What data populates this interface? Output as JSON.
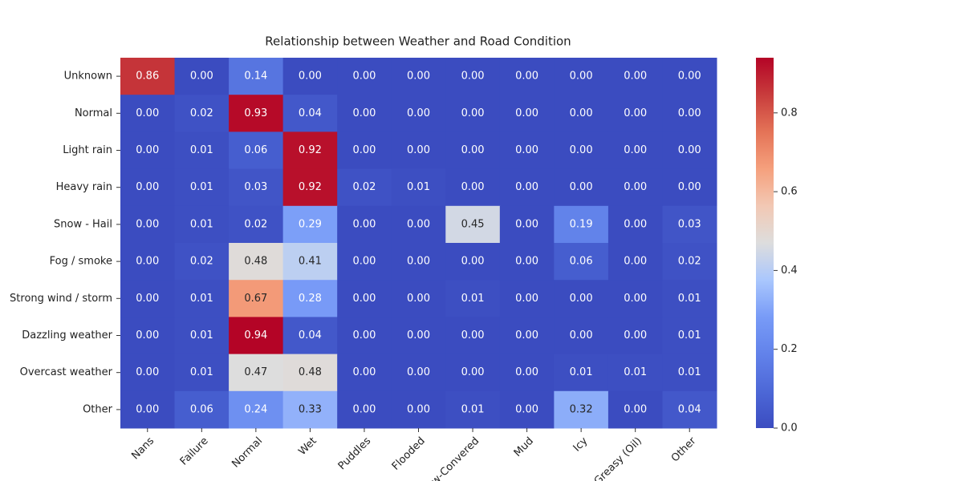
{
  "chart_data": {
    "type": "heatmap",
    "title": "Relationship between Weather and Road Condition",
    "colormap": "coolwarm",
    "categories": [
      "Nans",
      "Failure",
      "Normal",
      "Wet",
      "Puddles",
      "Flooded",
      "Snow-Convered",
      "Mud",
      "Icy",
      "Greasy (Oil)",
      "Other"
    ],
    "rows": [
      "Unknown",
      "Normal",
      "Light rain",
      "Heavy rain",
      "Snow - Hail",
      "Fog / smoke",
      "Strong wind / storm",
      "Dazzling weather",
      "Overcast weather",
      "Other"
    ],
    "values": [
      [
        0.86,
        0,
        0.14,
        0,
        0,
        0,
        0,
        0,
        0,
        0,
        0
      ],
      [
        0,
        0.02,
        0.93,
        0.04,
        0,
        0,
        0,
        0,
        0,
        0,
        0
      ],
      [
        0,
        0.01,
        0.06,
        0.92,
        0,
        0,
        0,
        0,
        0,
        0,
        0
      ],
      [
        0,
        0.01,
        0.03,
        0.92,
        0.02,
        0.01,
        0,
        0,
        0,
        0,
        0
      ],
      [
        0,
        0.01,
        0.02,
        0.29,
        0,
        0,
        0.45,
        0,
        0.19,
        0,
        0.03
      ],
      [
        0,
        0.02,
        0.48,
        0.41,
        0,
        0,
        0,
        0,
        0.06,
        0,
        0.02
      ],
      [
        0,
        0.01,
        0.67,
        0.28,
        0,
        0,
        0.01,
        0,
        0,
        0,
        0.01
      ],
      [
        0,
        0.01,
        0.94,
        0.04,
        0,
        0,
        0,
        0,
        0,
        0,
        0.01
      ],
      [
        0,
        0.01,
        0.47,
        0.48,
        0,
        0,
        0,
        0,
        0.01,
        0.01,
        0.01
      ],
      [
        0,
        0.06,
        0.24,
        0.33,
        0,
        0,
        0.01,
        0,
        0.32,
        0,
        0.04
      ]
    ],
    "value_labels": [
      [
        "0.86",
        "0.00",
        "0.14",
        "0.00",
        "0.00",
        "0.00",
        "0.00",
        "0.00",
        "0.00",
        "0.00",
        "0.00"
      ],
      [
        "0.00",
        "0.02",
        "0.93",
        "0.04",
        "0.00",
        "0.00",
        "0.00",
        "0.00",
        "0.00",
        "0.00",
        "0.00"
      ],
      [
        "0.00",
        "0.01",
        "0.06",
        "0.92",
        "0.00",
        "0.00",
        "0.00",
        "0.00",
        "0.00",
        "0.00",
        "0.00"
      ],
      [
        "0.00",
        "0.01",
        "0.03",
        "0.92",
        "0.02",
        "0.01",
        "0.00",
        "0.00",
        "0.00",
        "0.00",
        "0.00"
      ],
      [
        "0.00",
        "0.01",
        "0.02",
        "0.29",
        "0.00",
        "0.00",
        "0.45",
        "0.00",
        "0.19",
        "0.00",
        "0.03"
      ],
      [
        "0.00",
        "0.02",
        "0.48",
        "0.41",
        "0.00",
        "0.00",
        "0.00",
        "0.00",
        "0.06",
        "0.00",
        "0.02"
      ],
      [
        "0.00",
        "0.01",
        "0.67",
        "0.28",
        "0.00",
        "0.00",
        "0.01",
        "0.00",
        "0.00",
        "0.00",
        "0.01"
      ],
      [
        "0.00",
        "0.01",
        "0.94",
        "0.04",
        "0.00",
        "0.00",
        "0.00",
        "0.00",
        "0.00",
        "0.00",
        "0.01"
      ],
      [
        "0.00",
        "0.01",
        "0.47",
        "0.48",
        "0.00",
        "0.00",
        "0.00",
        "0.00",
        "0.01",
        "0.01",
        "0.01"
      ],
      [
        "0.00",
        "0.06",
        "0.24",
        "0.33",
        "0.00",
        "0.00",
        "0.01",
        "0.00",
        "0.32",
        "0.00",
        "0.04"
      ]
    ],
    "clim": [
      0,
      0.94
    ],
    "cticks": [
      {
        "value": 0,
        "label": "0.0"
      },
      {
        "value": 0.2,
        "label": "0.2"
      },
      {
        "value": 0.4,
        "label": "0.4"
      },
      {
        "value": 0.6,
        "label": "0.6"
      },
      {
        "value": 0.8,
        "label": "0.8"
      }
    ]
  }
}
